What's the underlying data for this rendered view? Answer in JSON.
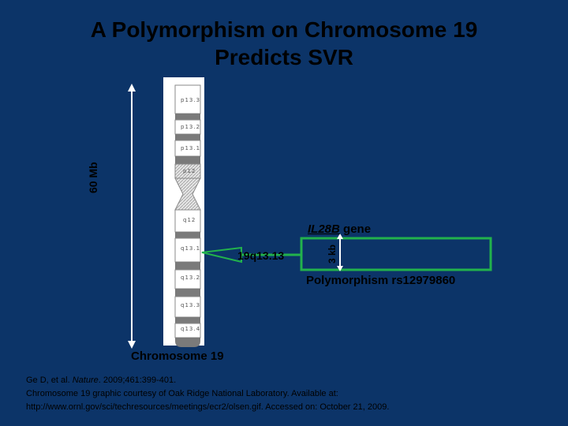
{
  "title": {
    "line1": "A Polymorphism on Chromosome 19",
    "line2": "Predicts SVR"
  },
  "chromosome": {
    "name": "Chromosome 19",
    "length_label": "60 Mb",
    "bands": [
      "p13.3",
      "p13.2",
      "p13.1",
      "p12",
      "q12",
      "q13.1",
      "q13.2",
      "q13.3",
      "q13.4"
    ]
  },
  "callout": {
    "band": "19q13.13",
    "scale_label": "3 kb",
    "gene_name": "IL28B",
    "gene_suffix": " gene",
    "polymorphism": "Polymorphism rs12979860",
    "box_color": "#22b24c"
  },
  "footnote": {
    "line1_prefix": "Ge D, et al. ",
    "line1_journal": "Nature",
    "line1_suffix": ". 2009;461:399-401.",
    "line2": "Chromosome 19 graphic courtesy of Oak Ridge National Laboratory. Available at:",
    "line3": "http://www.ornl.gov/sci/techresources/meetings/ecr2/olsen.gif. Accessed on: October 21, 2009."
  },
  "colors": {
    "background": "#0c3468",
    "text": "#000000",
    "arrow": "#ffffff",
    "callout_green": "#22b24c"
  }
}
